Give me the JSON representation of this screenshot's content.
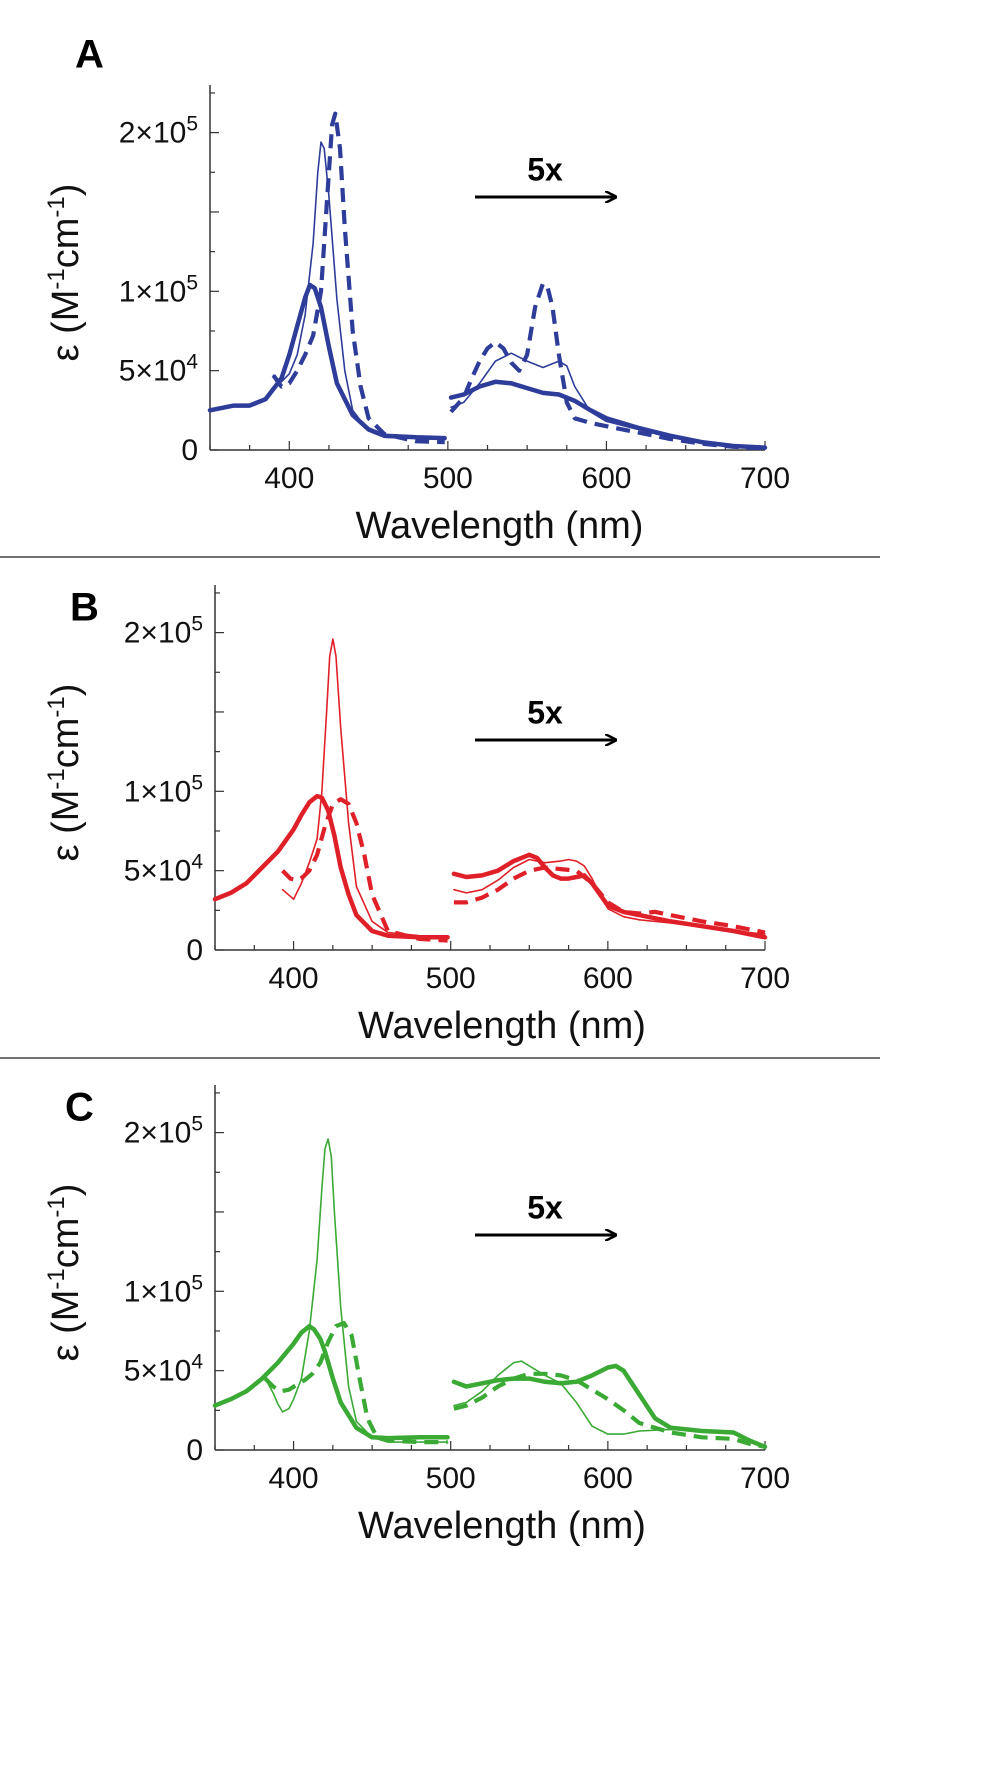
{
  "chart_data": [
    {
      "type": "line",
      "panel_label": "A",
      "color": "#2E3C9A",
      "xlabel": "Wavelength (nm)",
      "ylabel_parts": [
        "ε (M",
        "-1",
        "cm",
        "-1",
        ")"
      ],
      "xlim": [
        350,
        700
      ],
      "ylim": [
        0,
        230000
      ],
      "xticks": [
        400,
        500,
        600,
        700
      ],
      "yticks": [
        {
          "value": 0,
          "label": "0"
        },
        {
          "value": 50000,
          "mant": "5",
          "exp": "4"
        },
        {
          "value": 100000,
          "mant": "1",
          "exp": "5"
        },
        {
          "value": 200000,
          "mant": "2",
          "exp": "5"
        }
      ],
      "annotation": "5x",
      "series": [
        {
          "style": "thick",
          "x": [
            350,
            365,
            375,
            385,
            395,
            400,
            405,
            410,
            413,
            416,
            420,
            425,
            430,
            440,
            450,
            460,
            480,
            498
          ],
          "y": [
            25000,
            28000,
            28000,
            32000,
            45000,
            60000,
            78000,
            96000,
            104000,
            102000,
            90000,
            65000,
            42000,
            22000,
            13000,
            9000,
            8000,
            7500
          ]
        },
        {
          "style": "thick",
          "x": [
            502,
            510,
            520,
            530,
            540,
            550,
            560,
            570,
            580,
            590,
            600,
            620,
            640,
            660,
            680,
            700
          ],
          "y": [
            33000,
            35000,
            40000,
            43000,
            42000,
            39000,
            36000,
            35000,
            31000,
            25000,
            20000,
            14000,
            9000,
            5000,
            2500,
            1500
          ]
        },
        {
          "style": "thin",
          "x": [
            390,
            395,
            400,
            405,
            410,
            415,
            418,
            420,
            422,
            425,
            430,
            435,
            440,
            450,
            460,
            480,
            498
          ],
          "y": [
            47000,
            43000,
            48000,
            60000,
            85000,
            130000,
            175000,
            194000,
            190000,
            160000,
            95000,
            50000,
            25000,
            12000,
            8000,
            7500,
            7000
          ]
        },
        {
          "style": "thin",
          "x": [
            502,
            510,
            520,
            530,
            540,
            550,
            560,
            570,
            575,
            580,
            590,
            600,
            620,
            640,
            660,
            680,
            700
          ],
          "y": [
            27000,
            30000,
            42000,
            56000,
            61000,
            56000,
            52000,
            56000,
            53000,
            40000,
            24000,
            18000,
            13000,
            8000,
            5000,
            2500,
            1500
          ]
        },
        {
          "style": "dashed",
          "x": [
            390,
            395,
            400,
            405,
            410,
            415,
            420,
            424,
            427,
            429,
            432,
            435,
            440,
            445,
            450,
            460,
            480,
            498
          ],
          "y": [
            47000,
            40000,
            42000,
            50000,
            60000,
            72000,
            100000,
            160000,
            205000,
            212000,
            190000,
            140000,
            75000,
            40000,
            20000,
            10000,
            5500,
            5000
          ]
        },
        {
          "style": "dashed",
          "x": [
            502,
            510,
            515,
            520,
            525,
            530,
            535,
            540,
            545,
            550,
            555,
            560,
            563,
            566,
            570,
            575,
            580,
            590,
            600,
            620,
            640,
            660,
            680,
            700
          ],
          "y": [
            24000,
            33000,
            45000,
            56000,
            64000,
            68000,
            64000,
            55000,
            50000,
            60000,
            90000,
            105000,
            102000,
            90000,
            60000,
            30000,
            20000,
            17000,
            15000,
            11000,
            7000,
            4000,
            2000,
            1000
          ]
        }
      ]
    },
    {
      "type": "line",
      "panel_label": "B",
      "color": "#E02028",
      "xlabel": "Wavelength (nm)",
      "ylabel_parts": [
        "ε (M",
        "-1",
        "cm",
        "-1",
        ")"
      ],
      "xlim": [
        350,
        700
      ],
      "ylim": [
        0,
        230000
      ],
      "xticks": [
        400,
        500,
        600,
        700
      ],
      "yticks": [
        {
          "value": 0,
          "label": "0"
        },
        {
          "value": 50000,
          "mant": "5",
          "exp": "4"
        },
        {
          "value": 100000,
          "mant": "1",
          "exp": "5"
        },
        {
          "value": 200000,
          "mant": "2",
          "exp": "5"
        }
      ],
      "annotation": "5x",
      "series": [
        {
          "style": "thick",
          "x": [
            350,
            360,
            370,
            380,
            390,
            400,
            405,
            410,
            415,
            418,
            422,
            426,
            430,
            435,
            440,
            450,
            460,
            480,
            498
          ],
          "y": [
            32000,
            36000,
            42000,
            52000,
            62000,
            76000,
            85000,
            93000,
            97000,
            96000,
            88000,
            72000,
            52000,
            35000,
            22000,
            12000,
            9000,
            8000,
            8000
          ]
        },
        {
          "style": "thick",
          "x": [
            502,
            510,
            520,
            530,
            540,
            550,
            555,
            560,
            565,
            570,
            575,
            580,
            585,
            590,
            595,
            600,
            610,
            620,
            640,
            660,
            680,
            700
          ],
          "y": [
            48000,
            46000,
            47000,
            50000,
            56000,
            60000,
            58000,
            52000,
            47000,
            45000,
            45000,
            46000,
            47000,
            42000,
            35000,
            28000,
            24000,
            22000,
            18000,
            15000,
            12000,
            8000
          ]
        },
        {
          "style": "thin",
          "x": [
            393,
            400,
            405,
            410,
            415,
            418,
            421,
            423,
            425,
            427,
            430,
            435,
            440,
            450,
            460,
            480,
            498
          ],
          "y": [
            38000,
            32000,
            42000,
            55000,
            70000,
            100000,
            150000,
            185000,
            196000,
            185000,
            140000,
            80000,
            40000,
            18000,
            11000,
            9000,
            8500
          ]
        },
        {
          "style": "thin",
          "x": [
            502,
            510,
            520,
            530,
            540,
            550,
            560,
            570,
            575,
            580,
            585,
            590,
            595,
            600,
            610,
            620,
            640,
            660,
            680,
            700
          ],
          "y": [
            38000,
            36000,
            38000,
            44000,
            52000,
            57000,
            55000,
            56000,
            57000,
            56000,
            53000,
            45000,
            35000,
            26000,
            21000,
            19000,
            17000,
            15000,
            12000,
            10000
          ]
        },
        {
          "style": "dashed",
          "x": [
            393,
            398,
            402,
            406,
            410,
            415,
            420,
            425,
            430,
            435,
            440,
            445,
            450,
            460,
            480,
            498
          ],
          "y": [
            50000,
            45000,
            44000,
            46000,
            50000,
            60000,
            78000,
            92000,
            95000,
            92000,
            80000,
            60000,
            35000,
            12000,
            7000,
            6000
          ]
        },
        {
          "style": "dashed",
          "x": [
            502,
            510,
            520,
            530,
            540,
            550,
            560,
            570,
            580,
            590,
            600,
            610,
            620,
            630,
            640,
            660,
            680,
            700
          ],
          "y": [
            30000,
            30000,
            33000,
            38000,
            45000,
            50000,
            52000,
            51000,
            50000,
            42000,
            30000,
            24000,
            23000,
            24000,
            22000,
            18000,
            15000,
            11000
          ]
        }
      ]
    },
    {
      "type": "line",
      "panel_label": "C",
      "color": "#3AAA35",
      "xlabel": "Wavelength (nm)",
      "ylabel_parts": [
        "ε (M",
        "-1",
        "cm",
        "-1",
        ")"
      ],
      "xlim": [
        350,
        700
      ],
      "ylim": [
        0,
        230000
      ],
      "xticks": [
        400,
        500,
        600,
        700
      ],
      "yticks": [
        {
          "value": 0,
          "label": "0"
        },
        {
          "value": 50000,
          "mant": "5",
          "exp": "4"
        },
        {
          "value": 100000,
          "mant": "1",
          "exp": "5"
        },
        {
          "value": 200000,
          "mant": "2",
          "exp": "5"
        }
      ],
      "annotation": "5x",
      "series": [
        {
          "style": "thick",
          "x": [
            350,
            360,
            370,
            380,
            390,
            400,
            405,
            410,
            413,
            417,
            420,
            425,
            430,
            440,
            450,
            460,
            480,
            498
          ],
          "y": [
            28000,
            32000,
            37000,
            45000,
            55000,
            67000,
            74000,
            78000,
            76000,
            70000,
            62000,
            45000,
            30000,
            14000,
            8000,
            7500,
            8000,
            8000
          ]
        },
        {
          "style": "thick",
          "x": [
            502,
            510,
            520,
            530,
            540,
            550,
            560,
            570,
            580,
            590,
            600,
            605,
            610,
            620,
            630,
            640,
            660,
            680,
            690,
            700
          ],
          "y": [
            43000,
            40000,
            42000,
            44000,
            45000,
            45000,
            43000,
            42000,
            43000,
            47000,
            52000,
            53000,
            50000,
            35000,
            20000,
            14000,
            12000,
            11000,
            6000,
            2000
          ]
        },
        {
          "style": "thin",
          "x": [
            382,
            387,
            390,
            393,
            397,
            400,
            405,
            410,
            415,
            418,
            420,
            422,
            424,
            426,
            430,
            435,
            440,
            450,
            460,
            480,
            498
          ],
          "y": [
            45000,
            36000,
            29000,
            24000,
            26000,
            32000,
            45000,
            75000,
            120000,
            165000,
            190000,
            196000,
            185000,
            150000,
            90000,
            40000,
            18000,
            8000,
            5000,
            5000,
            5000
          ]
        },
        {
          "style": "thin",
          "x": [
            502,
            510,
            520,
            530,
            540,
            545,
            550,
            560,
            570,
            580,
            590,
            600,
            610,
            620,
            640,
            660,
            670,
            680,
            690,
            700
          ],
          "y": [
            28000,
            30000,
            37000,
            47000,
            55000,
            56000,
            53000,
            47000,
            42000,
            30000,
            15000,
            10000,
            10000,
            12000,
            13000,
            12000,
            12000,
            11000,
            7000,
            2000
          ]
        },
        {
          "style": "dashed",
          "x": [
            382,
            387,
            392,
            397,
            402,
            407,
            412,
            417,
            422,
            427,
            432,
            437,
            442,
            447,
            452,
            460,
            480,
            498
          ],
          "y": [
            45000,
            40000,
            37000,
            38000,
            41000,
            44000,
            48000,
            55000,
            68000,
            78000,
            80000,
            72000,
            45000,
            20000,
            10000,
            6000,
            5000,
            5000
          ]
        },
        {
          "style": "dashed",
          "x": [
            502,
            510,
            520,
            530,
            540,
            550,
            560,
            570,
            580,
            590,
            600,
            610,
            620,
            640,
            660,
            680,
            690,
            700
          ],
          "y": [
            26000,
            28000,
            33000,
            40000,
            45000,
            48000,
            48000,
            47000,
            44000,
            38000,
            32000,
            25000,
            17000,
            11000,
            8000,
            7000,
            4000,
            2000
          ]
        }
      ]
    }
  ]
}
